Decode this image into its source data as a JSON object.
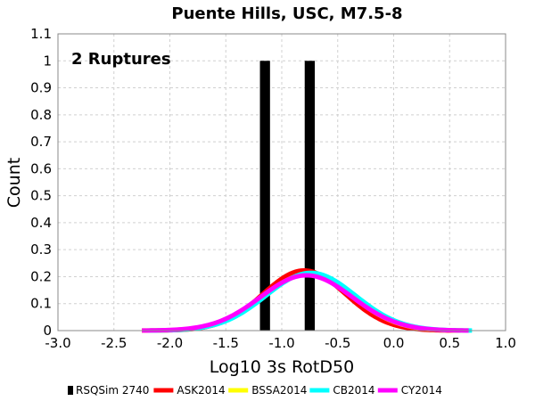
{
  "chart_data": {
    "type": "histogram_with_curves",
    "title": "Puente Hills, USC, M7.5-8",
    "xlabel": "Log10 3s RotD50",
    "ylabel": "Count",
    "xlim": [
      -3.0,
      1.0
    ],
    "ylim": [
      0,
      1.1
    ],
    "xticks": [
      "-3.0",
      "-2.5",
      "-2.0",
      "-1.5",
      "-1.0",
      "-0.5",
      "0.0",
      "0.5",
      "1.0"
    ],
    "yticks": [
      "0",
      "0.1",
      "0.2",
      "0.3",
      "0.4",
      "0.5",
      "0.6",
      "0.7",
      "0.8",
      "0.9",
      "1",
      "1.1"
    ],
    "grid": true,
    "annotation": "2 Ruptures",
    "bars": {
      "name": "RSQSim 2740",
      "color": "#000000",
      "x": [
        -1.15,
        -0.75
      ],
      "values": [
        1,
        1
      ]
    },
    "series": [
      {
        "name": "ASK2014",
        "color": "#ff0000",
        "mean": -0.8,
        "sigma": 0.37,
        "peak": 0.223,
        "xmin": -2.25,
        "xmax": 0.6
      },
      {
        "name": "BSSA2014",
        "color": "#ffff00",
        "mean": -0.77,
        "sigma": 0.4,
        "peak": 0.208,
        "xmin": -2.25,
        "xmax": 0.68
      },
      {
        "name": "CB2014",
        "color": "#00ffff",
        "mean": -0.74,
        "sigma": 0.4,
        "peak": 0.214,
        "xmin": -2.2,
        "xmax": 0.7
      },
      {
        "name": "CY2014",
        "color": "#ff00ff",
        "mean": -0.78,
        "sigma": 0.41,
        "peak": 0.205,
        "xmin": -2.25,
        "xmax": 0.67
      }
    ],
    "legend": {
      "position": "bottom",
      "entries": [
        "RSQSim 2740",
        "ASK2014",
        "BSSA2014",
        "CB2014",
        "CY2014"
      ]
    }
  }
}
